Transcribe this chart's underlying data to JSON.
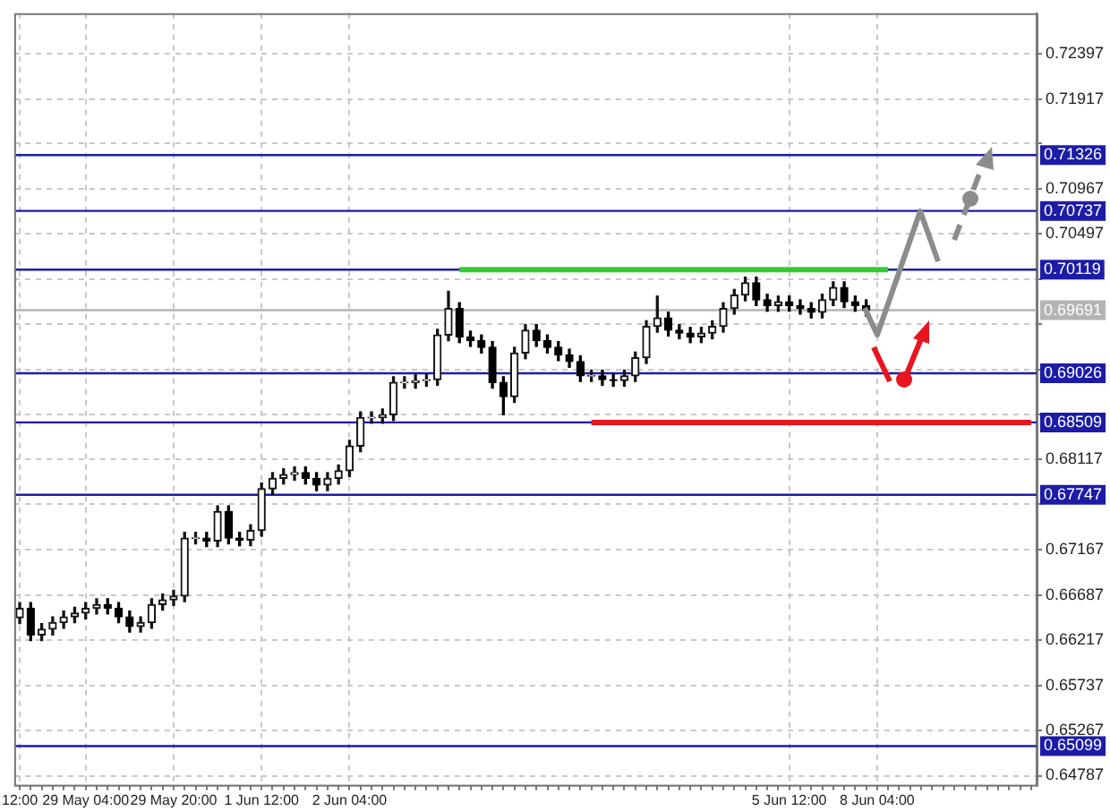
{
  "chart_data": {
    "type": "candlestick",
    "categories": [
      "12:00",
      null,
      null,
      null,
      null,
      null,
      "29 May 04:00",
      null,
      null,
      null,
      null,
      null,
      null,
      null,
      "29 May 20:00",
      null,
      null,
      null,
      null,
      null,
      null,
      null,
      "1 Jun 12:00",
      null,
      null,
      null,
      null,
      null,
      null,
      null,
      "2 Jun 04:00",
      null,
      null,
      null,
      null,
      null,
      null,
      null,
      null,
      null,
      null,
      null,
      null,
      null,
      null,
      null,
      null,
      null,
      null,
      null,
      null,
      null,
      null,
      null,
      null,
      null,
      null,
      null,
      null,
      null,
      null,
      null,
      null,
      null,
      null,
      null,
      null,
      null,
      null,
      null,
      "5 Jun 12:00",
      null,
      null,
      null,
      null,
      null,
      null,
      null,
      "8 Jun 04:00",
      null,
      null,
      null,
      null,
      null,
      null,
      null,
      null,
      null,
      null,
      null,
      null,
      null,
      null
    ],
    "ohlc": [
      [
        0.6645,
        0.6661,
        0.6639,
        0.6655
      ],
      [
        0.6655,
        0.6661,
        0.6621,
        0.6627
      ],
      [
        0.6627,
        0.6639,
        0.6621,
        0.6633
      ],
      [
        0.6633,
        0.6646,
        0.6627,
        0.664
      ],
      [
        0.664,
        0.6652,
        0.6634,
        0.6646
      ],
      [
        0.6646,
        0.6656,
        0.664,
        0.665
      ],
      [
        0.665,
        0.6661,
        0.6644,
        0.6655
      ],
      [
        0.6655,
        0.6665,
        0.6649,
        0.6659
      ],
      [
        0.6659,
        0.6665,
        0.6649,
        0.6655
      ],
      [
        0.6655,
        0.6661,
        0.664,
        0.6646
      ],
      [
        0.6646,
        0.6652,
        0.663,
        0.6636
      ],
      [
        0.6636,
        0.6646,
        0.663,
        0.664
      ],
      [
        0.664,
        0.6665,
        0.6634,
        0.6659
      ],
      [
        0.6659,
        0.667,
        0.6653,
        0.6664
      ],
      [
        0.6664,
        0.6674,
        0.6658,
        0.6668
      ],
      [
        0.6668,
        0.6735,
        0.6662,
        0.6729
      ],
      [
        0.6729,
        0.6735,
        0.6723,
        0.6729
      ],
      [
        0.6729,
        0.6735,
        0.672,
        0.6726
      ],
      [
        0.6726,
        0.6763,
        0.672,
        0.6757
      ],
      [
        0.6757,
        0.6763,
        0.6723,
        0.6729
      ],
      [
        0.6729,
        0.6735,
        0.6721,
        0.6727
      ],
      [
        0.6727,
        0.6743,
        0.6721,
        0.6737
      ],
      [
        0.6737,
        0.6787,
        0.6731,
        0.6781
      ],
      [
        0.6781,
        0.6798,
        0.6775,
        0.6792
      ],
      [
        0.6792,
        0.6802,
        0.6786,
        0.6796
      ],
      [
        0.6796,
        0.6804,
        0.679,
        0.6798
      ],
      [
        0.6798,
        0.6804,
        0.6786,
        0.6792
      ],
      [
        0.6792,
        0.6798,
        0.6779,
        0.6785
      ],
      [
        0.6785,
        0.6798,
        0.6779,
        0.6792
      ],
      [
        0.6792,
        0.6806,
        0.6786,
        0.68
      ],
      [
        0.68,
        0.6832,
        0.6794,
        0.6826
      ],
      [
        0.6826,
        0.6862,
        0.682,
        0.6856
      ],
      [
        0.6856,
        0.6862,
        0.685,
        0.6856
      ],
      [
        0.6856,
        0.6865,
        0.685,
        0.6859
      ],
      [
        0.6859,
        0.6899,
        0.6853,
        0.6893
      ],
      [
        0.6893,
        0.6899,
        0.6887,
        0.6893
      ],
      [
        0.6893,
        0.6901,
        0.6887,
        0.6895
      ],
      [
        0.6895,
        0.6902,
        0.6889,
        0.6896
      ],
      [
        0.6896,
        0.6949,
        0.689,
        0.6943
      ],
      [
        0.6943,
        0.6989,
        0.6937,
        0.6971
      ],
      [
        0.6971,
        0.6977,
        0.6935,
        0.6941
      ],
      [
        0.6941,
        0.6947,
        0.6931,
        0.6937
      ],
      [
        0.6937,
        0.6943,
        0.6924,
        0.693
      ],
      [
        0.693,
        0.6936,
        0.6887,
        0.6893
      ],
      [
        0.6893,
        0.6899,
        0.6859,
        0.6878
      ],
      [
        0.6878,
        0.693,
        0.6872,
        0.6924
      ],
      [
        0.6924,
        0.6954,
        0.6918,
        0.6948
      ],
      [
        0.6948,
        0.6954,
        0.6931,
        0.6937
      ],
      [
        0.6937,
        0.6943,
        0.6924,
        0.693
      ],
      [
        0.693,
        0.6936,
        0.6916,
        0.6922
      ],
      [
        0.6922,
        0.6928,
        0.6909,
        0.6915
      ],
      [
        0.6915,
        0.6921,
        0.6894,
        0.69
      ],
      [
        0.69,
        0.6906,
        0.6894,
        0.69
      ],
      [
        0.69,
        0.6906,
        0.689,
        0.6896
      ],
      [
        0.6896,
        0.6902,
        0.6889,
        0.6895
      ],
      [
        0.6895,
        0.6906,
        0.6889,
        0.69
      ],
      [
        0.69,
        0.6925,
        0.6894,
        0.6919
      ],
      [
        0.6919,
        0.6958,
        0.6913,
        0.6952
      ],
      [
        0.6952,
        0.6984,
        0.6946,
        0.6961
      ],
      [
        0.6961,
        0.6967,
        0.6942,
        0.6948
      ],
      [
        0.6948,
        0.6954,
        0.6939,
        0.6945
      ],
      [
        0.6945,
        0.6951,
        0.6935,
        0.6941
      ],
      [
        0.6941,
        0.6951,
        0.6935,
        0.6945
      ],
      [
        0.6945,
        0.6958,
        0.6939,
        0.6952
      ],
      [
        0.6952,
        0.6977,
        0.6946,
        0.6971
      ],
      [
        0.6971,
        0.6991,
        0.6965,
        0.6985
      ],
      [
        0.6985,
        0.7004,
        0.6979,
        0.6998
      ],
      [
        0.6998,
        0.7004,
        0.6974,
        0.698
      ],
      [
        0.698,
        0.6986,
        0.6968,
        0.6974
      ],
      [
        0.6974,
        0.6984,
        0.6968,
        0.6978
      ],
      [
        0.6978,
        0.6984,
        0.6968,
        0.6974
      ],
      [
        0.6974,
        0.698,
        0.6965,
        0.6971
      ],
      [
        0.6971,
        0.6977,
        0.6961,
        0.6967
      ],
      [
        0.6967,
        0.6986,
        0.6961,
        0.698
      ],
      [
        0.698,
        0.6999,
        0.6974,
        0.6993
      ],
      [
        0.6993,
        0.6999,
        0.6972,
        0.6978
      ],
      [
        0.6978,
        0.6984,
        0.6968,
        0.6974
      ],
      [
        0.6974,
        0.698,
        0.6963,
        0.6969
      ],
      null,
      null,
      null,
      null,
      null,
      null,
      null,
      null,
      null,
      null,
      null,
      null,
      null,
      null,
      null
    ],
    "series": [
      {
        "type": "line",
        "color": "#33cc33",
        "values": [
          null,
          null,
          null,
          null,
          null,
          null,
          null,
          null,
          null,
          null,
          null,
          null,
          null,
          null,
          null,
          null,
          null,
          null,
          null,
          null,
          null,
          null,
          null,
          null,
          null,
          null,
          null,
          null,
          null,
          null,
          null,
          null,
          null,
          null,
          null,
          null,
          null,
          null,
          null,
          null,
          0.70119,
          0.70119,
          0.70119,
          0.70119,
          0.70119,
          0.70119,
          0.70119,
          0.70119,
          0.70119,
          0.70119,
          0.70119,
          0.70119,
          0.70119,
          0.70119,
          0.70119,
          0.70119,
          0.70119,
          0.70119,
          0.70119,
          0.70119,
          0.70119,
          0.70119,
          0.70119,
          0.70119,
          0.70119,
          0.70119,
          0.70119,
          0.70119,
          0.70119,
          0.70119,
          0.70119,
          0.70119,
          0.70119,
          0.70119,
          0.70119,
          0.70119,
          0.70119,
          0.70119,
          0.70119,
          0.70119,
          null,
          null,
          null,
          null,
          null,
          null,
          null,
          null,
          null,
          null,
          null,
          null,
          null
        ]
      },
      {
        "type": "line",
        "color": "#e8141e",
        "values": [
          null,
          null,
          null,
          null,
          null,
          null,
          null,
          null,
          null,
          null,
          null,
          null,
          null,
          null,
          null,
          null,
          null,
          null,
          null,
          null,
          null,
          null,
          null,
          null,
          null,
          null,
          null,
          null,
          null,
          null,
          null,
          null,
          null,
          null,
          null,
          null,
          null,
          null,
          null,
          null,
          null,
          null,
          null,
          null,
          null,
          null,
          null,
          null,
          null,
          null,
          null,
          null,
          0.68509,
          0.68509,
          0.68509,
          0.68509,
          0.68509,
          0.68509,
          0.68509,
          0.68509,
          0.68509,
          0.68509,
          0.68509,
          0.68509,
          0.68509,
          0.68509,
          0.68509,
          0.68509,
          0.68509,
          0.68509,
          0.68509,
          0.68509,
          0.68509,
          0.68509,
          0.68509,
          0.68509,
          0.68509,
          0.68509,
          0.68509,
          0.68509,
          0.68509,
          0.68509,
          0.68509,
          0.68509,
          0.68509,
          0.68509,
          0.68509,
          0.68509,
          0.68509,
          0.68509,
          0.68509,
          0.68509,
          0.68509
        ]
      }
    ],
    "ylim": [
      0.6469,
      0.7282
    ],
    "yticks": [
      0.72397,
      0.71917,
      {
        "value": 0.71447,
        "label": null
      },
      0.70967,
      0.70497,
      {
        "value": 0.70017,
        "label": null
      },
      {
        "value": 0.69547,
        "label": null
      },
      {
        "value": 0.69067,
        "label": null
      },
      {
        "value": 0.68597,
        "label": null
      },
      0.68117,
      {
        "value": 0.67647,
        "label": null
      },
      0.67167,
      0.66687,
      0.66217,
      0.65737,
      0.65267,
      0.64787
    ],
    "ref_lines": [
      {
        "axis": "y",
        "value": 0.71326,
        "label": "0.71326",
        "color": "#1c1ca8"
      },
      {
        "axis": "y",
        "value": 0.70737,
        "label": "0.70737",
        "color": "#1c1ca8"
      },
      {
        "axis": "y",
        "value": 0.70119,
        "label": "0.70119",
        "color": "#1c1ca8"
      },
      {
        "axis": "y",
        "value": 0.69691,
        "label": "0.69691",
        "color": "#b4b4b4"
      },
      {
        "axis": "y",
        "value": 0.69026,
        "label": "0.69026",
        "color": "#1c1ca8"
      },
      {
        "axis": "y",
        "value": 0.68509,
        "label": "0.68509",
        "color": "#1c1ca8"
      },
      {
        "axis": "y",
        "value": 0.67747,
        "label": "0.67747",
        "color": "#1c1ca8"
      },
      {
        "axis": "y",
        "value": 0.65099,
        "label": "0.65099",
        "color": "#1c1ca8"
      }
    ],
    "grid": true,
    "legend": false
  }
}
